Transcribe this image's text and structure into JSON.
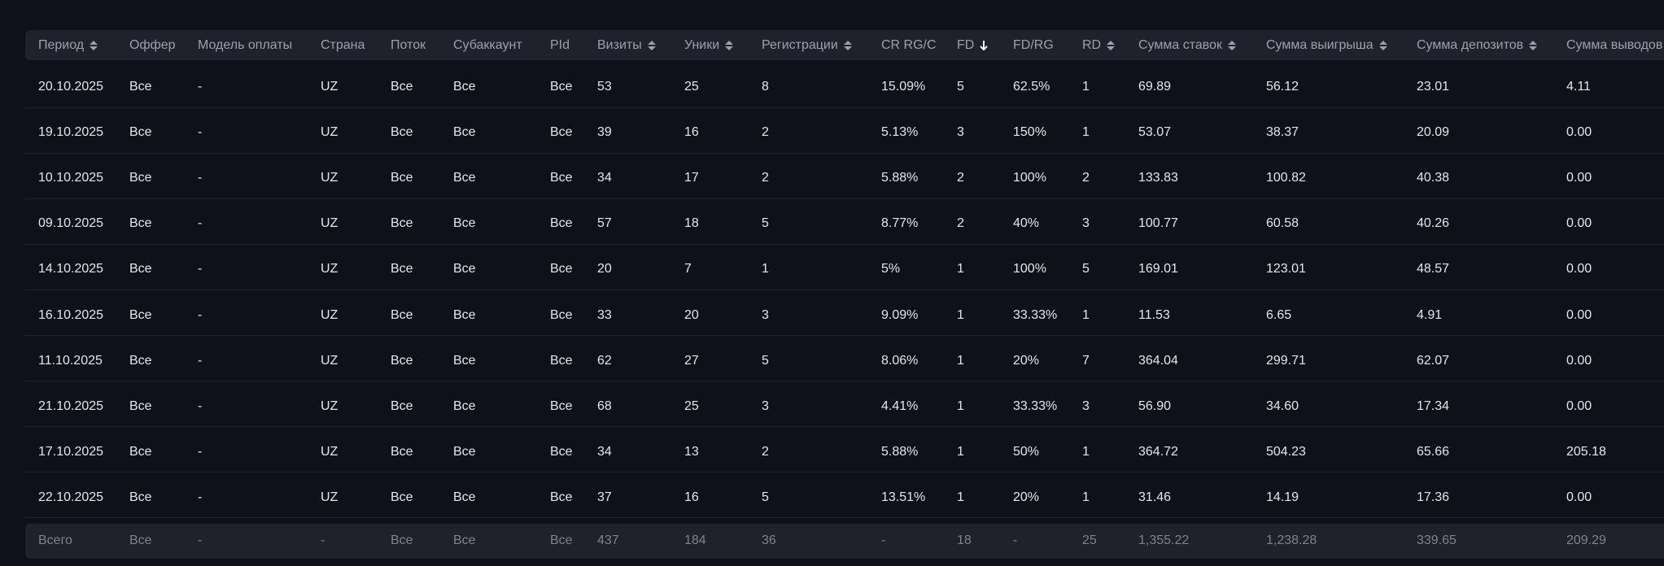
{
  "table": {
    "header": [
      "Период",
      "Оффер",
      "Модель оплаты",
      "Страна",
      "Поток",
      "Субаккаунт",
      "PId",
      "Визиты",
      "Уники",
      "Регистрации",
      "CR RG/C",
      "FD",
      "FD/RG",
      "RD",
      "Сумма ставок",
      "Сумма выигрыша",
      "Сумма депозитов",
      "Сумма выводов"
    ],
    "rows": [
      [
        "20.10.2025",
        "Все",
        "-",
        "UZ",
        "Все",
        "Все",
        "Все",
        "53",
        "25",
        "8",
        "15.09%",
        "5",
        "62.5%",
        "1",
        "69.89",
        "56.12",
        "23.01",
        "4.11"
      ],
      [
        "19.10.2025",
        "Все",
        "-",
        "UZ",
        "Все",
        "Все",
        "Все",
        "39",
        "16",
        "2",
        "5.13%",
        "3",
        "150%",
        "1",
        "53.07",
        "38.37",
        "20.09",
        "0.00"
      ],
      [
        "10.10.2025",
        "Все",
        "-",
        "UZ",
        "Все",
        "Все",
        "Все",
        "34",
        "17",
        "2",
        "5.88%",
        "2",
        "100%",
        "2",
        "133.83",
        "100.82",
        "40.38",
        "0.00"
      ],
      [
        "09.10.2025",
        "Все",
        "-",
        "UZ",
        "Все",
        "Все",
        "Все",
        "57",
        "18",
        "5",
        "8.77%",
        "2",
        "40%",
        "3",
        "100.77",
        "60.58",
        "40.26",
        "0.00"
      ],
      [
        "14.10.2025",
        "Все",
        "-",
        "UZ",
        "Все",
        "Все",
        "Все",
        "20",
        "7",
        "1",
        "5%",
        "1",
        "100%",
        "5",
        "169.01",
        "123.01",
        "48.57",
        "0.00"
      ],
      [
        "16.10.2025",
        "Все",
        "-",
        "UZ",
        "Все",
        "Все",
        "Все",
        "33",
        "20",
        "3",
        "9.09%",
        "1",
        "33.33%",
        "1",
        "11.53",
        "6.65",
        "4.91",
        "0.00"
      ],
      [
        "11.10.2025",
        "Все",
        "-",
        "UZ",
        "Все",
        "Все",
        "Все",
        "62",
        "27",
        "5",
        "8.06%",
        "1",
        "20%",
        "7",
        "364.04",
        "299.71",
        "62.07",
        "0.00"
      ],
      [
        "21.10.2025",
        "Все",
        "-",
        "UZ",
        "Все",
        "Все",
        "Все",
        "68",
        "25",
        "3",
        "4.41%",
        "1",
        "33.33%",
        "3",
        "56.90",
        "34.60",
        "17.34",
        "0.00"
      ],
      [
        "17.10.2025",
        "Все",
        "-",
        "UZ",
        "Все",
        "Все",
        "Все",
        "34",
        "13",
        "2",
        "5.88%",
        "1",
        "50%",
        "1",
        "364.72",
        "504.23",
        "65.66",
        "205.18"
      ],
      [
        "22.10.2025",
        "Все",
        "-",
        "UZ",
        "Все",
        "Все",
        "Все",
        "37",
        "16",
        "5",
        "13.51%",
        "1",
        "20%",
        "1",
        "31.46",
        "14.19",
        "17.36",
        "0.00"
      ]
    ],
    "total": [
      "Всего",
      "Все",
      "-",
      "-",
      "Все",
      "Все",
      "Все",
      "437",
      "184",
      "36",
      "-",
      "18",
      "-",
      "25",
      "1,355.22",
      "1,238.28",
      "339.65",
      "209.29"
    ]
  }
}
